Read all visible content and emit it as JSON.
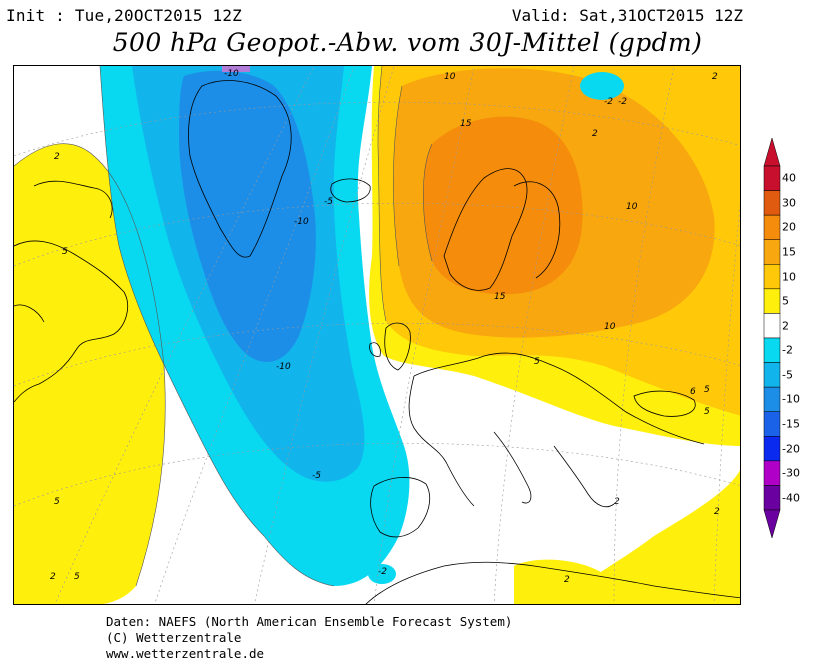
{
  "header": {
    "init": "Init : Tue,20OCT2015 12Z",
    "valid": "Valid: Sat,31OCT2015 12Z",
    "title": "500 hPa Geopot.-Abw. vom 30J-Mittel (gpdm)"
  },
  "legend": {
    "labels": [
      "40",
      "30",
      "20",
      "15",
      "10",
      "5",
      "2",
      "-2",
      "-5",
      "-10",
      "-15",
      "-20",
      "-30",
      "-40"
    ],
    "colors": [
      "#c8102e",
      "#e05a10",
      "#f58c0c",
      "#f8a80e",
      "#ffc90a",
      "#ffef0c",
      "#ffffff",
      "#08d8f0",
      "#12b4ec",
      "#1c8ee8",
      "#1a62e8",
      "#0a2af0",
      "#b000c8",
      "#6a00a0"
    ]
  },
  "contour_labels": [
    {
      "text": "-10"
    },
    {
      "text": "-5"
    },
    {
      "text": "-10"
    },
    {
      "text": "-10"
    },
    {
      "text": "-5"
    },
    {
      "text": "-2"
    },
    {
      "text": "-2"
    },
    {
      "text": "2"
    },
    {
      "text": "5"
    },
    {
      "text": "5"
    },
    {
      "text": "5"
    },
    {
      "text": "2"
    },
    {
      "text": "10"
    },
    {
      "text": "15"
    },
    {
      "text": "15"
    },
    {
      "text": "10"
    },
    {
      "text": "10"
    },
    {
      "text": "5"
    },
    {
      "text": "5"
    },
    {
      "text": "6"
    },
    {
      "text": "5"
    },
    {
      "text": "2"
    },
    {
      "text": "-2"
    },
    {
      "text": "2"
    },
    {
      "text": "2"
    },
    {
      "text": "2"
    },
    {
      "text": "2"
    }
  ],
  "footer": {
    "line1": "Daten: NAEFS (North American Ensemble Forecast System)",
    "line2": "(C) Wetterzentrale",
    "line3": "www.wetterzentrale.de"
  }
}
